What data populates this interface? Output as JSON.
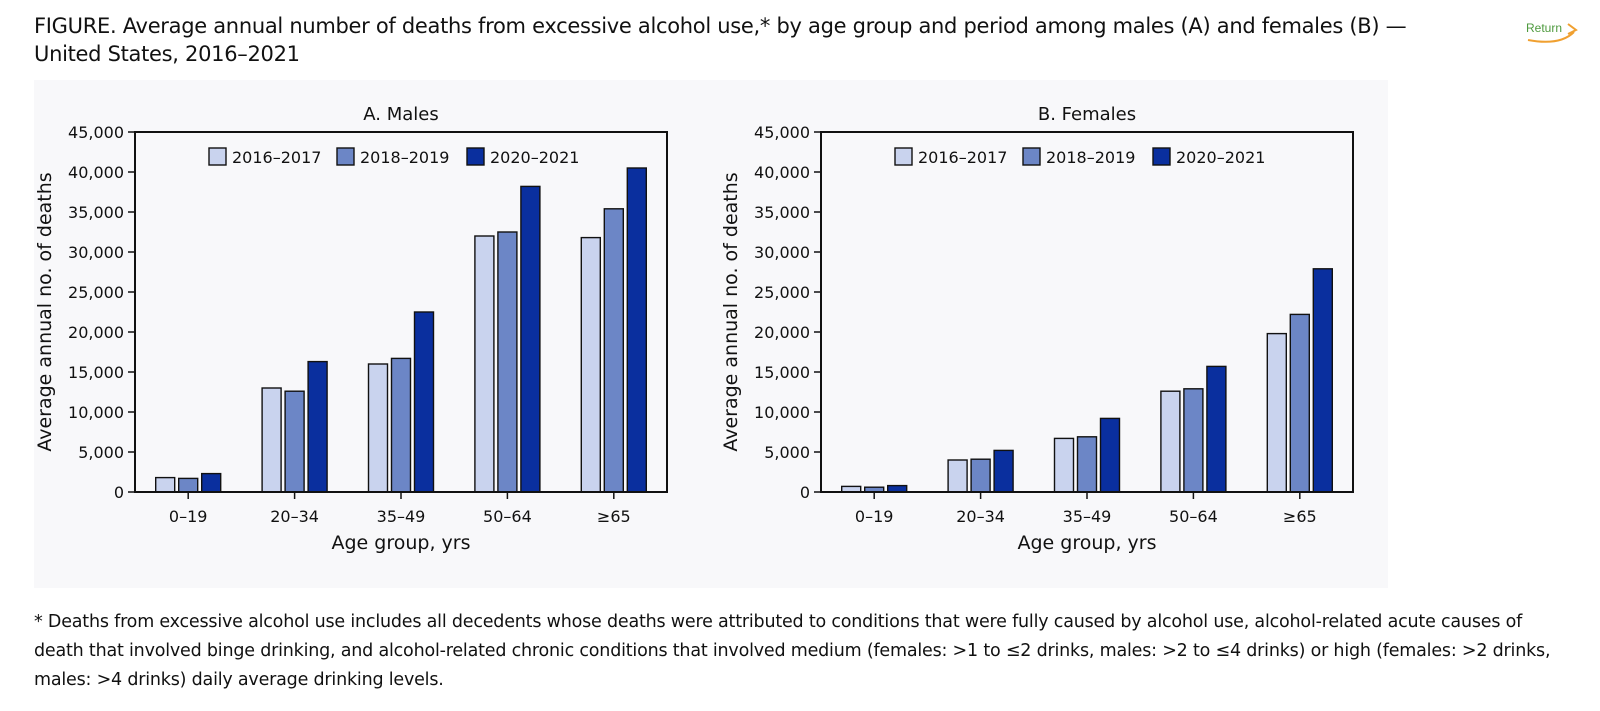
{
  "title": "FIGURE. Average annual number of deaths from excessive alcohol use,* by age group and period among males (A) and females (B) — United States, 2016–2021",
  "return_link": {
    "label": "Return",
    "icon": "return-arrow-icon",
    "color": "#4e9a3e",
    "accent": "#f0a030"
  },
  "colors": {
    "s2016": "#c9d3ee",
    "s2018": "#6c86c6",
    "s2020": "#0a2f9e",
    "outline": "#111111"
  },
  "chart_data": [
    {
      "type": "bar",
      "title": "A. Males",
      "xlabel": "Age group, yrs",
      "ylabel": "Average annual no. of deaths",
      "categories": [
        "0–19",
        "20–34",
        "35–49",
        "50–64",
        "≥65"
      ],
      "ylim": [
        0,
        45000
      ],
      "yticks": [
        0,
        5000,
        10000,
        15000,
        20000,
        25000,
        30000,
        35000,
        40000,
        45000
      ],
      "ytick_labels": [
        "0",
        "5,000",
        "10,000",
        "15,000",
        "20,000",
        "25,000",
        "30,000",
        "35,000",
        "40,000",
        "45,000"
      ],
      "legend_position": "top",
      "grid": false,
      "series": [
        {
          "name": "2016–2017",
          "values": [
            1800,
            13000,
            16000,
            32000,
            31800
          ]
        },
        {
          "name": "2018–2019",
          "values": [
            1700,
            12600,
            16700,
            32500,
            35400
          ]
        },
        {
          "name": "2020–2021",
          "values": [
            2300,
            16300,
            22500,
            38200,
            40500
          ]
        }
      ]
    },
    {
      "type": "bar",
      "title": "B. Females",
      "xlabel": "Age group, yrs",
      "ylabel": "Average annual no. of deaths",
      "categories": [
        "0–19",
        "20–34",
        "35–49",
        "50–64",
        "≥65"
      ],
      "ylim": [
        0,
        45000
      ],
      "yticks": [
        0,
        5000,
        10000,
        15000,
        20000,
        25000,
        30000,
        35000,
        40000,
        45000
      ],
      "ytick_labels": [
        "0",
        "5,000",
        "10,000",
        "15,000",
        "20,000",
        "25,000",
        "30,000",
        "35,000",
        "40,000",
        "45,000"
      ],
      "legend_position": "top",
      "grid": false,
      "series": [
        {
          "name": "2016–2017",
          "values": [
            700,
            4000,
            6700,
            12600,
            19800
          ]
        },
        {
          "name": "2018–2019",
          "values": [
            600,
            4100,
            6900,
            12900,
            22200
          ]
        },
        {
          "name": "2020–2021",
          "values": [
            800,
            5200,
            9200,
            15700,
            27900
          ]
        }
      ]
    }
  ],
  "footnote": "* Deaths from excessive alcohol use includes all decedents whose deaths were attributed to conditions that were fully caused by alcohol use, alcohol-related acute causes of death that involved binge drinking, and alcohol-related chronic conditions that involved medium (females: >1 to ≤2 drinks, males: >2 to ≤4 drinks) or high (females: >2 drinks, males: >4 drinks) daily average drinking levels."
}
